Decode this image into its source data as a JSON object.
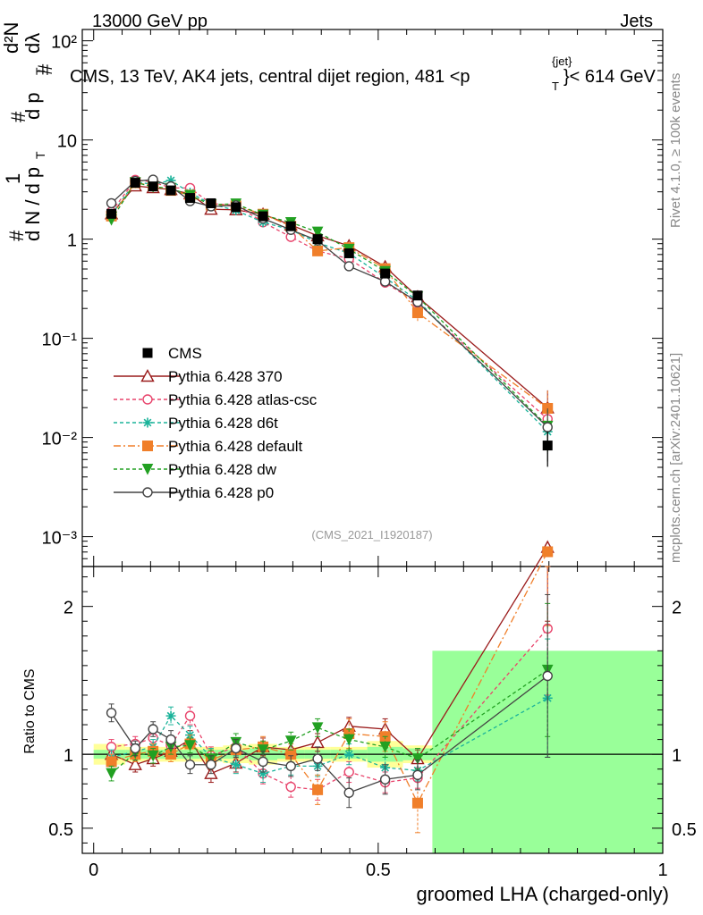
{
  "header": {
    "left": "13000 GeV pp",
    "right": "Jets",
    "title": "CMS, 13 TeV, AK4 jets, central dijet region, 481 <p",
    "title_sup": "{jet}",
    "title_sub": "T",
    "title_tail": "}< 614 GeV"
  },
  "side_labels": {
    "rivet": "Rivet 4.1.0, ≥ 100k events",
    "mcplots": "mcplots.cern.ch [arXiv:2401.10621]"
  },
  "analysis_tag": "(CMS_2021_I1920187)",
  "chart_data": {
    "type": "line",
    "xlabel": "groomed LHA (charged-only)",
    "ylabel": "1/N dN/dp_T dλ  (per p_T)",
    "ylabel_parts": {
      "one": "1",
      "hash": "#",
      "dN": "d N / d p",
      "T": "T",
      "num": "d²N",
      "mid": "d p",
      "dl": "dλ"
    },
    "ratio_ylabel": "Ratio to CMS",
    "xlim": [
      -0.02,
      1.0
    ],
    "ylim_log": [
      0.0005,
      130
    ],
    "ratio_ylim": [
      0.33,
      2.27
    ],
    "x_ticks": [
      "0",
      "0.5",
      "1"
    ],
    "x_tick_values": [
      0,
      0.5,
      1
    ],
    "y_tick_labels": [
      "10⁻³",
      "10⁻²",
      "10⁻¹",
      "1",
      "10",
      "10²"
    ],
    "y_tick_values": [
      0.001,
      0.01,
      0.1,
      1,
      10,
      100
    ],
    "ratio_ticks": [
      "0.5",
      "1",
      "2"
    ],
    "ratio_tick_values": [
      0.5,
      1,
      2
    ],
    "bin_edges": [
      0,
      0.0556,
      0.0909,
      0.1176,
      0.1538,
      0.1852,
      0.2273,
      0.2727,
      0.3226,
      0.3704,
      0.4167,
      0.4808,
      0.5435,
      0.5952,
      1.0
    ],
    "x": [
      0.0312,
      0.0731,
      0.1044,
      0.1357,
      0.1694,
      0.2062,
      0.25,
      0.2976,
      0.3465,
      0.3935,
      0.4487,
      0.5122,
      0.5693,
      0.7976
    ],
    "cms": {
      "name": "CMS",
      "values": [
        1.8,
        3.7,
        3.4,
        3.1,
        2.6,
        2.3,
        2.1,
        1.7,
        1.35,
        1.0,
        0.72,
        0.45,
        0.27,
        0.0083
      ],
      "band_err": [
        0.07,
        0.05,
        0.05,
        0.05,
        0.05,
        0.05,
        0.06,
        0.07,
        0.05,
        0.05,
        0.05,
        0.09,
        0.06,
        0.65
      ],
      "band_stat": [
        0.03,
        0.03,
        0.03,
        0.03,
        0.03,
        0.03,
        0.03,
        0.04,
        0.03,
        0.03,
        0.03,
        0.05,
        0.04,
        0.7
      ]
    },
    "series": [
      {
        "name": "Pythia 6.428 370",
        "color": "#9a1b1b",
        "dash": "none",
        "marker": "triangle-open",
        "ratio": [
          1.0,
          0.93,
          0.97,
          1.02,
          1.1,
          0.87,
          0.94,
          1.05,
          1.03,
          1.08,
          1.19,
          1.17,
          0.97,
          2.4
        ],
        "ratio_err": [
          0.05,
          0.05,
          0.05,
          0.05,
          0.06,
          0.06,
          0.06,
          0.06,
          0.06,
          0.06,
          0.06,
          0.07,
          0.06,
          0.5
        ]
      },
      {
        "name": "Pythia 6.428 atlas-csc",
        "color": "#e8436b",
        "dash": "4,3",
        "marker": "circle-open",
        "ratio": [
          1.05,
          1.07,
          1.11,
          1.06,
          1.26,
          0.99,
          1.05,
          0.87,
          0.78,
          0.76,
          0.88,
          0.81,
          0.84,
          1.85
        ],
        "ratio_err": [
          0.05,
          0.05,
          0.05,
          0.06,
          0.06,
          0.06,
          0.06,
          0.07,
          0.07,
          0.07,
          0.07,
          0.07,
          0.07,
          0.45
        ]
      },
      {
        "name": "Pythia 6.428 d6t",
        "color": "#1bb39a",
        "dash": "4,3",
        "marker": "star",
        "ratio": [
          0.98,
          1.02,
          1.05,
          1.26,
          1.13,
          0.98,
          0.93,
          0.87,
          0.92,
          0.92,
          1.0,
          0.91,
          0.89,
          1.38
        ],
        "ratio_err": [
          0.05,
          0.05,
          0.05,
          0.06,
          0.06,
          0.06,
          0.06,
          0.06,
          0.06,
          0.07,
          0.07,
          0.07,
          0.07,
          0.4
        ]
      },
      {
        "name": "Pythia 6.428 default",
        "color": "#f07f2a",
        "dash": "8,3,2,3",
        "marker": "square",
        "ratio": [
          0.95,
          1.0,
          1.02,
          1.0,
          1.07,
          0.96,
          1.03,
          1.05,
          1.0,
          0.76,
          1.14,
          1.12,
          0.67,
          2.37
        ],
        "ratio_err": [
          0.05,
          0.05,
          0.05,
          0.05,
          0.06,
          0.06,
          0.06,
          0.07,
          0.07,
          0.1,
          0.1,
          0.1,
          0.2,
          0.5
        ]
      },
      {
        "name": "Pythia 6.428 dw",
        "color": "#22a022",
        "dash": "4,3",
        "marker": "triangle-down",
        "ratio": [
          0.87,
          1.01,
          0.99,
          1.05,
          1.06,
          0.97,
          1.08,
          1.03,
          1.09,
          1.18,
          1.1,
          1.05,
          0.97,
          1.57
        ],
        "ratio_err": [
          0.05,
          0.05,
          0.05,
          0.05,
          0.05,
          0.06,
          0.06,
          0.06,
          0.06,
          0.06,
          0.07,
          0.07,
          0.07,
          0.45
        ]
      },
      {
        "name": "Pythia 6.428 p0",
        "color": "#444444",
        "dash": "none",
        "marker": "circle-open",
        "ratio": [
          1.28,
          1.04,
          1.17,
          1.1,
          0.93,
          0.93,
          1.04,
          0.95,
          0.92,
          0.97,
          0.74,
          0.83,
          0.86,
          1.53
        ],
        "ratio_err": [
          0.06,
          0.05,
          0.05,
          0.06,
          0.06,
          0.06,
          0.06,
          0.07,
          0.07,
          0.08,
          0.1,
          0.1,
          0.1,
          0.55
        ]
      }
    ]
  }
}
